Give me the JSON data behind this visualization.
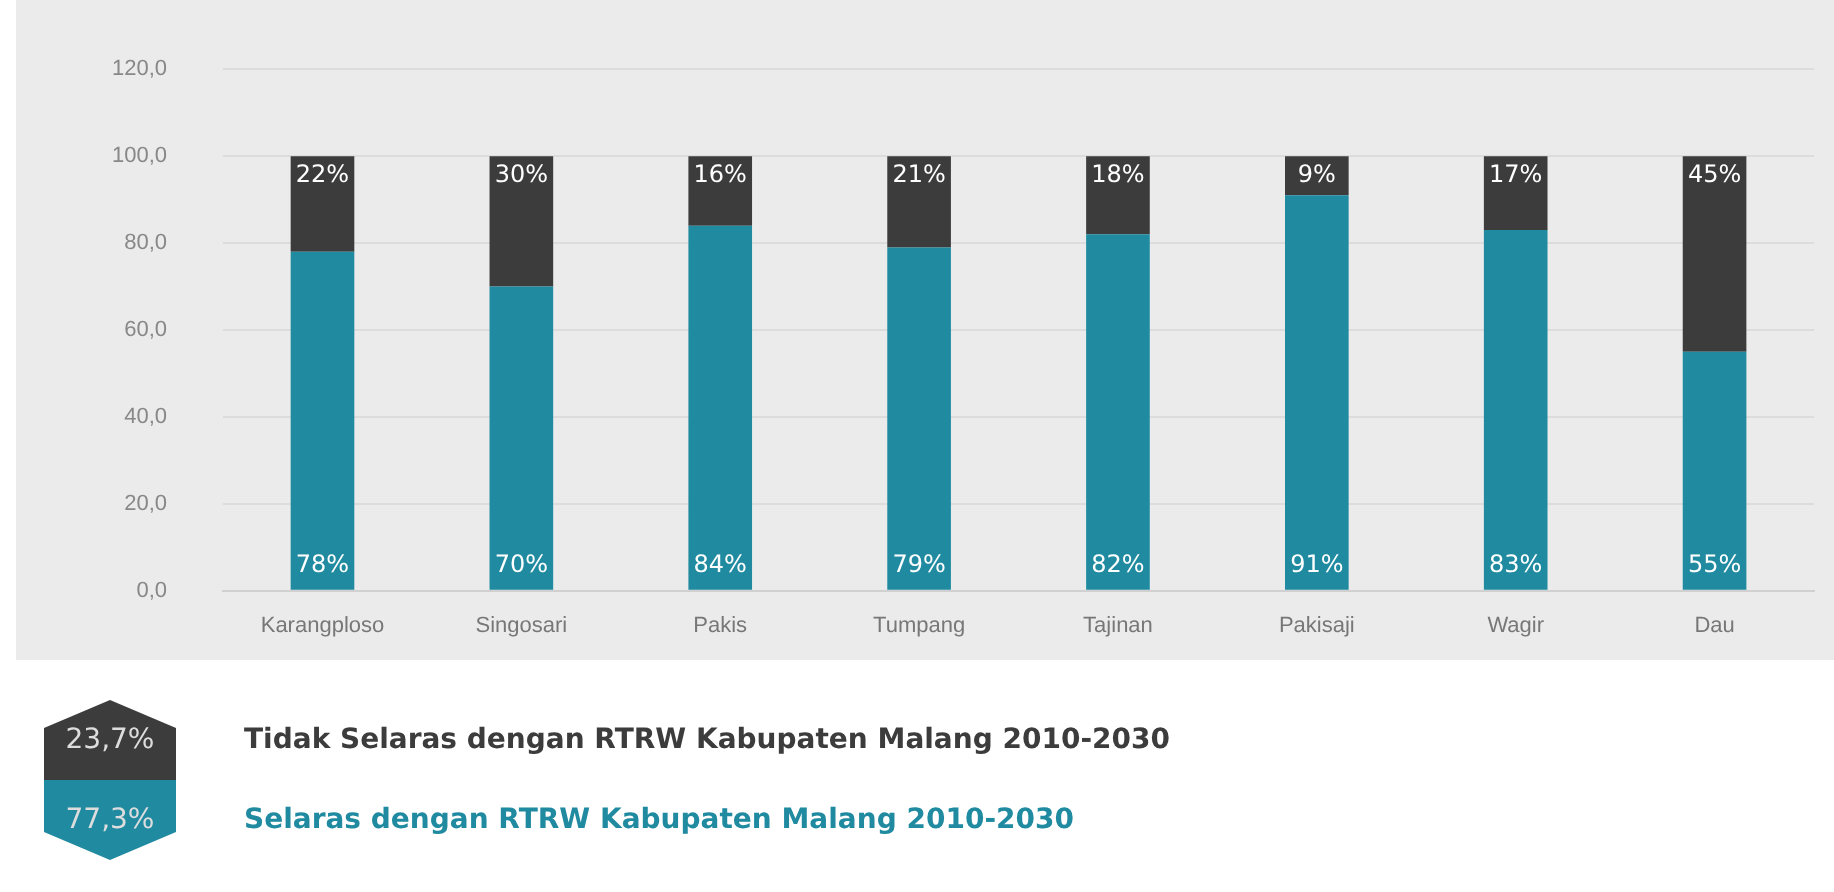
{
  "chart_data": {
    "type": "bar",
    "stacked": true,
    "categories": [
      "Karangploso",
      "Singosari",
      "Pakis",
      "Tumpang",
      "Tajinan",
      "Pakisaji",
      "Wagir",
      "Dau"
    ],
    "series": [
      {
        "name": "Selaras dengan RTRW Kabupaten Malang 2010-2030",
        "color": "#1f8aa0",
        "values": [
          78,
          70,
          84,
          79,
          82,
          91,
          83,
          55
        ],
        "value_labels": [
          "78%",
          "70%",
          "84%",
          "79%",
          "82%",
          "91%",
          "83%",
          "55%"
        ]
      },
      {
        "name": "Tidak Selaras dengan RTRW Kabupaten Malang 2010-2030",
        "color": "#3c3c3c",
        "values": [
          22,
          30,
          16,
          21,
          18,
          9,
          17,
          45
        ],
        "value_labels": [
          "22%",
          "30%",
          "16%",
          "21%",
          "18%",
          "9%",
          "17%",
          "45%"
        ]
      }
    ],
    "ylim": [
      0,
      120
    ],
    "yticks": [
      {
        "value": 0,
        "label": "0,0"
      },
      {
        "value": 20,
        "label": "20,0"
      },
      {
        "value": 40,
        "label": "40,0"
      },
      {
        "value": 60,
        "label": "60,0"
      },
      {
        "value": 80,
        "label": "80,0"
      },
      {
        "value": 100,
        "label": "100,0"
      },
      {
        "value": 120,
        "label": "120,0"
      }
    ],
    "grid": "y",
    "legend": "bottom",
    "annotations": [
      "77,3%",
      "23,7%"
    ]
  }
}
